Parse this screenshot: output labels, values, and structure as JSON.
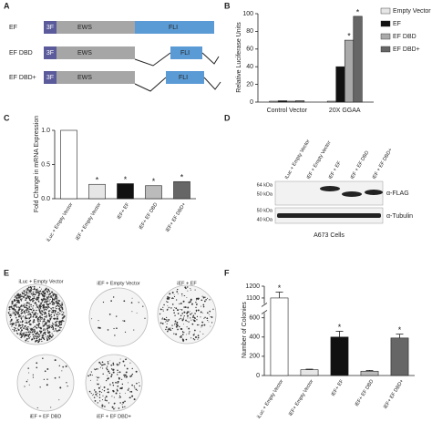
{
  "panel_labels": [
    "A",
    "B",
    "C",
    "D",
    "E",
    "F"
  ],
  "constructs": [
    {
      "name": "EF",
      "tag": "3F",
      "ews": "EWS",
      "fli": "FLI"
    },
    {
      "name": "EF DBD",
      "tag": "3F",
      "ews": "EWS",
      "fli": "FLI"
    },
    {
      "name": "EF DBD+",
      "tag": "3F",
      "ews": "EWS",
      "fli": "FLI"
    }
  ],
  "chart_data": [
    {
      "type": "bar",
      "y_label": "Relative Luciferase Units",
      "categories": [
        "Control Vector",
        "20X GGAA"
      ],
      "series": [
        {
          "name": "Empty Vector",
          "color": "#e6e6e6",
          "values": [
            1,
            1
          ],
          "annotations": [
            null,
            null
          ]
        },
        {
          "name": "EF",
          "color": "#111111",
          "values": [
            1.5,
            40
          ],
          "annotations": [
            null,
            null
          ]
        },
        {
          "name": "EF DBD",
          "color": "#aaaaaa",
          "values": [
            1,
            70
          ],
          "annotations": [
            null,
            "*"
          ]
        },
        {
          "name": "EF DBD+",
          "color": "#666666",
          "values": [
            1.5,
            97
          ],
          "annotations": [
            null,
            "*"
          ]
        }
      ],
      "ylim": [
        0,
        100
      ],
      "yticks": [
        0,
        20,
        40,
        60,
        80,
        100
      ]
    },
    {
      "type": "bar",
      "y_label": "Fold Change in mRNA Expression",
      "categories": [
        "iLuc + Empty Vector",
        "iEF + Empty Vector",
        "iEF+ EF",
        "iEF+ EF DBD",
        "iEF+ EF DBD+"
      ],
      "values": [
        1.0,
        0.21,
        0.22,
        0.19,
        0.25
      ],
      "colors": [
        "#ffffff",
        "#e6e6e6",
        "#111111",
        "#bbbbbb",
        "#666666"
      ],
      "annotations": [
        null,
        "*",
        "*",
        "*",
        "*"
      ],
      "ylim": [
        0,
        1
      ],
      "yticks": [
        {
          "value": 0,
          "label": "0.0"
        },
        {
          "value": 0.5,
          "label": "0.5"
        },
        {
          "value": 1,
          "label": "1.0"
        }
      ]
    },
    {
      "type": "bar",
      "y_label": "Number of Colonies",
      "categories": [
        "iLuc + Empty Vector",
        "iEF+ Empty Vector",
        "iEF+ EF",
        "iEF+ EF DBD",
        "iEF+ EF DBD+"
      ],
      "values": [
        1100,
        60,
        400,
        45,
        390
      ],
      "errors": [
        50,
        6,
        60,
        8,
        40
      ],
      "colors": [
        "#ffffff",
        "#e6e6e6",
        "#111111",
        "#bbbbbb",
        "#666666"
      ],
      "annotations": [
        "*",
        null,
        "*",
        null,
        "*"
      ],
      "ylim": [
        0,
        1200
      ],
      "ybreak": [
        650,
        1050
      ],
      "yticks": [
        0,
        200,
        400,
        600,
        1100,
        1200
      ]
    }
  ],
  "blot": {
    "lanes": [
      "iLuc + Empty Vector",
      "iEF + Empty Vector",
      "iEF + EF",
      "iEF + EF DBD",
      "iEF + EF DBD+"
    ],
    "rows": [
      {
        "antibody": "α-FLAG",
        "markers": [
          "64 kDa",
          "50 kDa"
        ]
      },
      {
        "antibody": "α-Tubulin",
        "markers": [
          "50 kDa",
          "40 kDa"
        ]
      }
    ],
    "cell_line": "A673 Cells"
  },
  "plates": [
    "iLuc + Empty Vector",
    "iEF + Empty Vector",
    "iEF + EF",
    "iEF + EF DBD",
    "iEF + EF DBD+"
  ]
}
